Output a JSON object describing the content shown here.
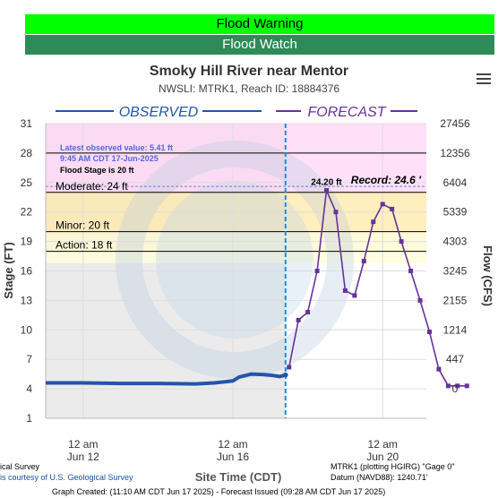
{
  "banners": {
    "warning": "Flood Warning",
    "watch": "Flood Watch"
  },
  "header": {
    "title": "Smoky Hill River near Mentor",
    "subtitle": "NWSLI: MTRK1, Reach ID: 18884376"
  },
  "menu_icon": "hamburger-menu-icon",
  "colors": {
    "observed": "#2255aa",
    "forecast": "#663399",
    "warning": "#00ff00",
    "watch": "#2e8b57"
  },
  "chart_data": {
    "type": "line",
    "ylabel": "Stage (FT)",
    "ylabel_right": "Flow (CFS)",
    "xlabel": "Site Time (CDT)",
    "ylim": [
      1,
      31
    ],
    "y_ticks": [
      "1",
      "4",
      "7",
      "10",
      "13",
      "16",
      "19",
      "22",
      "25",
      "28",
      "31"
    ],
    "flow_ticks": [
      {
        "stage": 4,
        "label": "0"
      },
      {
        "stage": 7,
        "label": "447"
      },
      {
        "stage": 10,
        "label": "1214"
      },
      {
        "stage": 13,
        "label": "2155"
      },
      {
        "stage": 16,
        "label": "3245"
      },
      {
        "stage": 19,
        "label": "4303"
      },
      {
        "stage": 22,
        "label": "5339"
      },
      {
        "stage": 25,
        "label": "6404"
      },
      {
        "stage": 28,
        "label": "12356"
      },
      {
        "stage": 31,
        "label": "27456"
      }
    ],
    "xlim_hours": [
      -24,
      220
    ],
    "x_ticks": [
      {
        "hours": 0,
        "line1": "12 am",
        "line2": "Jun 12"
      },
      {
        "hours": 96,
        "line1": "12 am",
        "line2": "Jun 16"
      },
      {
        "hours": 192,
        "line1": "12 am",
        "line2": "Jun 20"
      }
    ],
    "legend": {
      "observed": "OBSERVED",
      "forecast": "FORECAST"
    },
    "now_hours": 129.75,
    "categories": [
      {
        "name": "Moderate",
        "label": "Moderate: 24 ft",
        "stage": 24,
        "color": "#ffe8a8"
      },
      {
        "name": "Minor",
        "label": "Minor: 20 ft",
        "stage": 20,
        "color": "#fff9cf"
      },
      {
        "name": "Action",
        "label": "Action: 18 ft",
        "stage": 18,
        "color": "#ffffd9"
      }
    ],
    "major_band_color": "#ffd6f5",
    "record": {
      "label": "Record: 24.6 '",
      "stage": 24.6
    },
    "observed_info": {
      "line1": "Latest observed value: 5.41 ft",
      "line2": "9:45 AM CDT 17-Jun-2025",
      "line3": "Flood Stage is 20 ft"
    },
    "crest_label": "24.20 ft",
    "series": [
      {
        "name": "OBSERVED",
        "points": [
          [
            -24,
            4.6
          ],
          [
            0,
            4.6
          ],
          [
            24,
            4.55
          ],
          [
            48,
            4.55
          ],
          [
            72,
            4.5
          ],
          [
            84,
            4.6
          ],
          [
            96,
            4.8
          ],
          [
            100,
            5.2
          ],
          [
            108,
            5.5
          ],
          [
            116,
            5.45
          ],
          [
            122,
            5.35
          ],
          [
            126,
            5.25
          ],
          [
            129.75,
            5.41
          ]
        ]
      },
      {
        "name": "FORECAST",
        "points": [
          [
            132,
            6.2
          ],
          [
            138,
            11.0
          ],
          [
            144,
            11.8
          ],
          [
            150,
            16.0
          ],
          [
            156,
            24.2
          ],
          [
            162,
            22.0
          ],
          [
            168,
            14.0
          ],
          [
            174,
            13.5
          ],
          [
            180,
            17.0
          ],
          [
            186,
            21.0
          ],
          [
            192,
            22.8
          ],
          [
            198,
            22.3
          ],
          [
            204,
            19.0
          ],
          [
            210,
            16.0
          ],
          [
            216,
            13.0
          ],
          [
            222,
            9.8
          ],
          [
            228,
            6.0
          ],
          [
            234,
            4.3
          ],
          [
            240,
            4.3
          ],
          [
            246,
            4.3
          ]
        ]
      }
    ]
  },
  "footer": {
    "left1": "ical Survey",
    "left2": "is courtesy of U.S. Geological Survey",
    "right1": "MTRK1 (plotting HGIRG) \"Gage 0\"",
    "right2": "Datum (NAVD88): 1240.71'",
    "created": "Graph Created: (11:10 AM CDT Jun 17 2025) - Forecast Issued (09:28 AM CDT Jun 17 2025)"
  }
}
